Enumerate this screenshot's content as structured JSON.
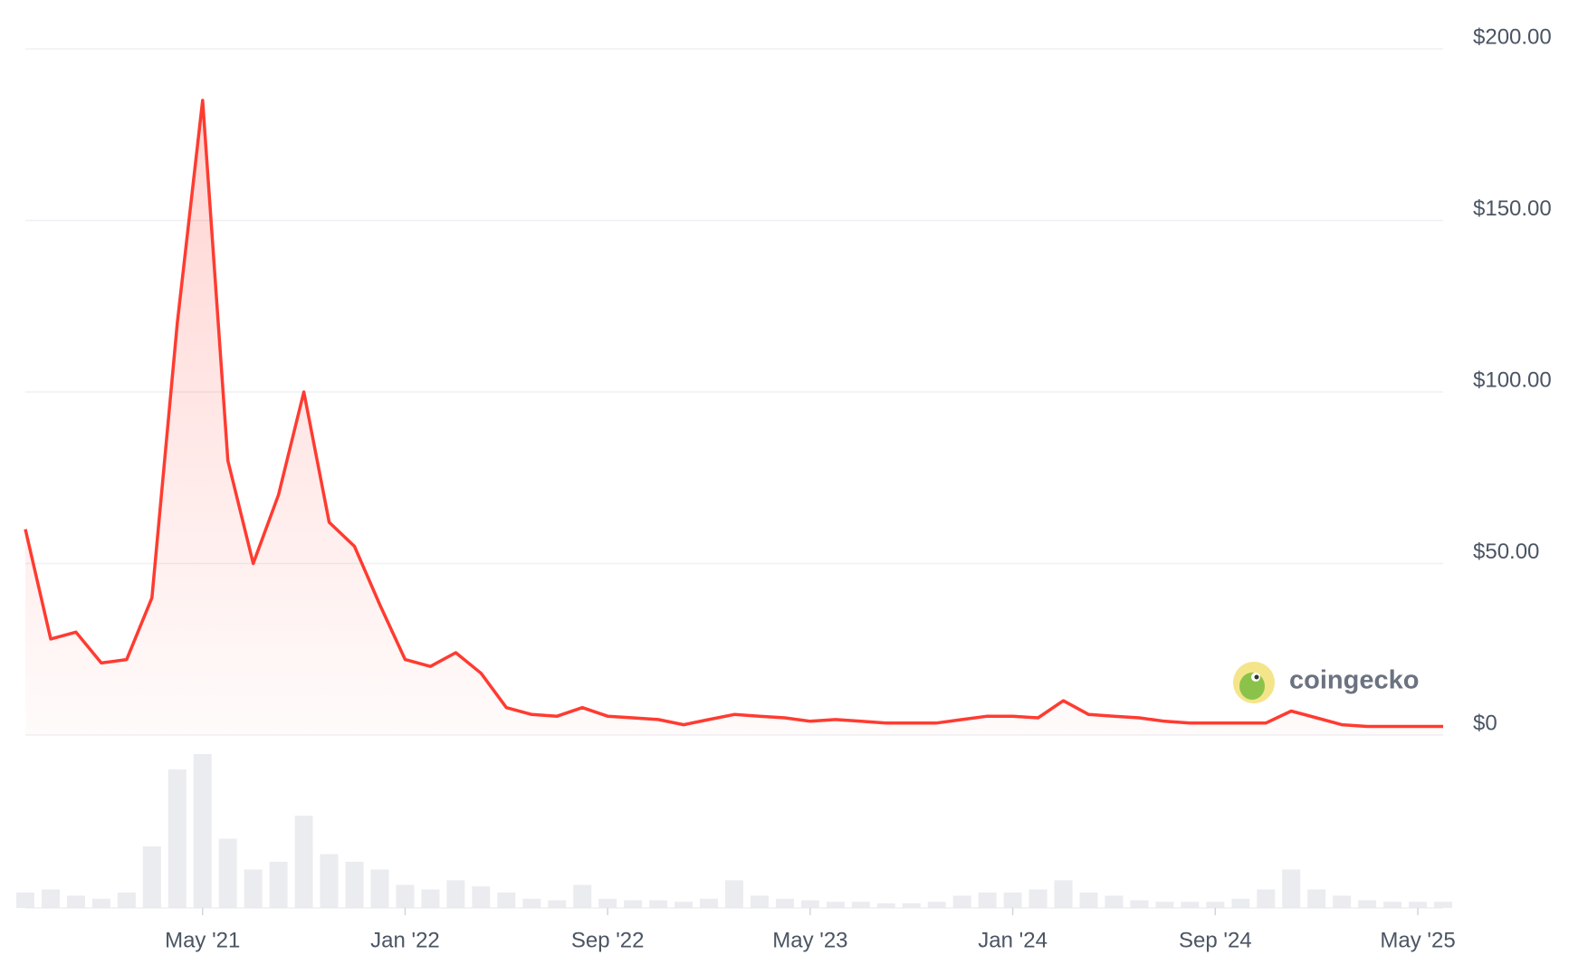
{
  "chart_data": {
    "type": "line",
    "x": [
      "2020-10",
      "2020-11",
      "2020-12",
      "2021-01",
      "2021-02",
      "2021-03",
      "2021-04",
      "2021-05",
      "2021-06",
      "2021-07",
      "2021-08",
      "2021-09",
      "2021-10",
      "2021-11",
      "2021-12",
      "2022-01",
      "2022-02",
      "2022-03",
      "2022-04",
      "2022-05",
      "2022-06",
      "2022-07",
      "2022-08",
      "2022-09",
      "2022-10",
      "2022-11",
      "2022-12",
      "2023-01",
      "2023-02",
      "2023-03",
      "2023-04",
      "2023-05",
      "2023-06",
      "2023-07",
      "2023-08",
      "2023-09",
      "2023-10",
      "2023-11",
      "2023-12",
      "2024-01",
      "2024-02",
      "2024-03",
      "2024-04",
      "2024-05",
      "2024-06",
      "2024-07",
      "2024-08",
      "2024-09",
      "2024-10",
      "2024-11",
      "2024-12",
      "2025-01",
      "2025-02",
      "2025-03",
      "2025-04",
      "2025-05",
      "2025-06"
    ],
    "series": [
      {
        "color": "#ff3b30",
        "values": [
          60,
          28,
          30,
          21,
          22,
          40,
          120,
          185,
          80,
          50,
          70,
          100,
          62,
          55,
          38,
          22,
          20,
          24,
          18,
          8,
          6,
          5.5,
          8,
          5.5,
          5,
          4.5,
          3,
          4.5,
          6,
          5.5,
          5,
          4,
          4.5,
          4,
          3.5,
          3.5,
          3.5,
          4.5,
          5.5,
          5.5,
          5,
          10,
          6,
          5.5,
          5,
          4,
          3.5,
          3.5,
          3.5,
          3.5,
          7,
          5,
          3,
          2.5,
          2.5,
          2.5,
          2.5
        ]
      }
    ],
    "volume": [
      10,
      12,
      8,
      6,
      10,
      40,
      90,
      100,
      45,
      25,
      30,
      60,
      35,
      30,
      25,
      15,
      12,
      18,
      14,
      10,
      6,
      5,
      15,
      6,
      5,
      5,
      4,
      6,
      18,
      8,
      6,
      5,
      4,
      4,
      3,
      3,
      4,
      8,
      10,
      10,
      12,
      18,
      10,
      8,
      5,
      4,
      4,
      4,
      6,
      12,
      25,
      12,
      8,
      5,
      4,
      4,
      4
    ],
    "xlim": [
      "2020-10",
      "2025-06"
    ],
    "xticks": [
      {
        "value": "2021-05",
        "label": "May '21"
      },
      {
        "value": "2022-01",
        "label": "Jan '22"
      },
      {
        "value": "2022-09",
        "label": "Sep '22"
      },
      {
        "value": "2023-05",
        "label": "May '23"
      },
      {
        "value": "2024-01",
        "label": "Jan '24"
      },
      {
        "value": "2024-09",
        "label": "Sep '24"
      },
      {
        "value": "2025-05",
        "label": "May '25"
      }
    ],
    "ylim": [
      0,
      200
    ],
    "yticks": [
      {
        "value": 0,
        "label": "$0"
      },
      {
        "value": 50,
        "label": "$50.00"
      },
      {
        "value": 100,
        "label": "$100.00"
      },
      {
        "value": 150,
        "label": "$150.00"
      },
      {
        "value": 200,
        "label": "$200.00"
      }
    ],
    "grid": true,
    "watermark": "coingecko"
  }
}
